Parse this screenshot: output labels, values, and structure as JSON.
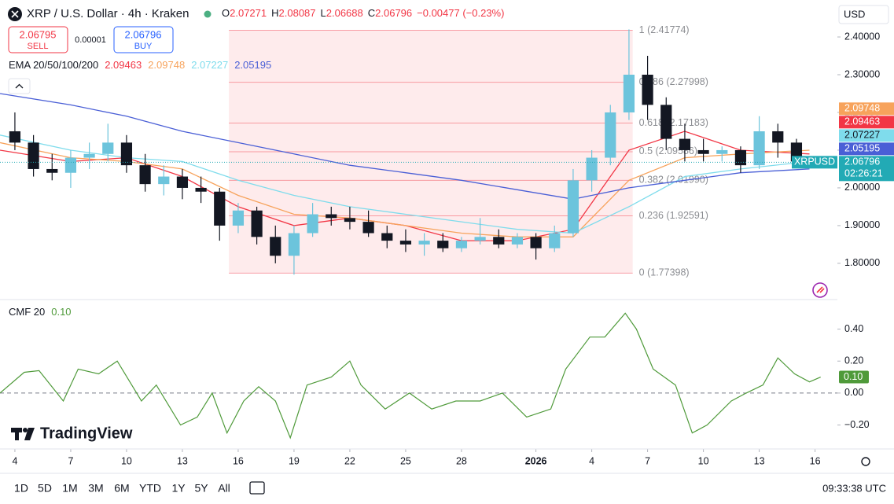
{
  "header": {
    "symbol": "XRP / U.S. Dollar · 4h · Kraken",
    "ohlc": [
      {
        "key": "O",
        "value": "2.07271"
      },
      {
        "key": "H",
        "value": "2.08087"
      },
      {
        "key": "L",
        "value": "2.06688"
      },
      {
        "key": "C",
        "value": "2.06796"
      }
    ],
    "change": "−0.00477 (−0.23%)",
    "sell": {
      "price": "2.06795",
      "label": "SELL"
    },
    "spread": "0.00001",
    "buy": {
      "price": "2.06796",
      "label": "BUY"
    },
    "currency": "USD"
  },
  "chart_data": [
    {
      "type": "candlestick",
      "indicator": "EMA 20/50/100/200",
      "x": [
        0,
        1,
        2,
        3,
        4,
        5,
        6,
        7,
        8,
        9,
        10,
        11,
        12,
        13,
        14,
        15,
        16,
        17,
        18,
        19,
        20,
        21,
        22,
        23,
        24,
        25,
        26,
        27,
        28,
        29,
        30,
        31,
        32,
        33,
        34,
        35,
        36,
        37,
        38,
        39,
        40,
        41,
        42
      ],
      "open": [
        2.15,
        2.12,
        2.05,
        2.04,
        2.08,
        2.09,
        2.12,
        2.06,
        2.01,
        2.03,
        2.0,
        1.99,
        1.9,
        1.94,
        1.87,
        1.82,
        1.88,
        1.93,
        1.92,
        1.91,
        1.88,
        1.86,
        1.85,
        1.86,
        1.84,
        1.86,
        1.87,
        1.85,
        1.87,
        1.84,
        1.88,
        2.02,
        2.08,
        2.2,
        2.3,
        2.22,
        2.13,
        2.1,
        2.09,
        2.1,
        2.06,
        2.15,
        2.12
      ],
      "high": [
        2.2,
        2.14,
        2.09,
        2.1,
        2.12,
        2.17,
        2.14,
        2.09,
        2.06,
        2.05,
        2.03,
        2.0,
        1.96,
        1.95,
        1.9,
        1.9,
        1.96,
        1.95,
        1.95,
        1.94,
        1.9,
        1.89,
        1.88,
        1.88,
        1.87,
        1.92,
        1.89,
        1.88,
        1.88,
        1.9,
        2.05,
        2.1,
        2.22,
        2.42,
        2.35,
        2.24,
        2.17,
        2.13,
        2.11,
        2.11,
        2.19,
        2.17,
        2.13
      ],
      "low": [
        2.1,
        2.03,
        2.02,
        2.0,
        2.05,
        2.07,
        2.04,
        1.99,
        1.98,
        1.97,
        1.96,
        1.86,
        1.88,
        1.85,
        1.8,
        1.77,
        1.87,
        1.9,
        1.89,
        1.87,
        1.84,
        1.83,
        1.82,
        1.83,
        1.83,
        1.85,
        1.84,
        1.84,
        1.81,
        1.83,
        1.87,
        1.99,
        2.06,
        2.18,
        2.18,
        2.1,
        2.07,
        2.07,
        2.07,
        2.04,
        2.05,
        2.08,
        2.06
      ],
      "close": [
        2.12,
        2.05,
        2.04,
        2.08,
        2.09,
        2.12,
        2.06,
        2.01,
        2.03,
        2.0,
        1.99,
        1.9,
        1.94,
        1.87,
        1.82,
        1.88,
        1.93,
        1.92,
        1.91,
        1.88,
        1.86,
        1.85,
        1.86,
        1.84,
        1.86,
        1.87,
        1.85,
        1.87,
        1.84,
        1.88,
        2.02,
        2.08,
        2.2,
        2.3,
        2.22,
        2.13,
        2.1,
        2.09,
        2.1,
        2.06,
        2.15,
        2.12,
        2.07
      ],
      "up_color": "#6cc4dc",
      "down_color": "#131722",
      "xlim": [
        -0.8,
        44.2
      ],
      "xticks": [
        {
          "value": 0,
          "label": "4"
        },
        {
          "value": 3,
          "label": "7"
        },
        {
          "value": 6,
          "label": "10"
        },
        {
          "value": 9,
          "label": "13"
        },
        {
          "value": 12,
          "label": "16"
        },
        {
          "value": 15,
          "label": "19"
        },
        {
          "value": 18,
          "label": "22"
        },
        {
          "value": 21,
          "label": "25"
        },
        {
          "value": 24,
          "label": "28"
        },
        {
          "value": 28,
          "label": "2026"
        },
        {
          "value": 31,
          "label": "4"
        },
        {
          "value": 34,
          "label": "7"
        },
        {
          "value": 37,
          "label": "10"
        },
        {
          "value": 40,
          "label": "13"
        },
        {
          "value": 43,
          "label": "16"
        }
      ],
      "ylim": [
        1.706,
        2.498
      ],
      "yticks": [
        {
          "value": 1.8,
          "label": "1.80000"
        },
        {
          "value": 1.9,
          "label": "1.90000"
        },
        {
          "value": 2.0,
          "label": "2.00000"
        },
        {
          "value": 2.1,
          "label": "2.10000"
        },
        {
          "value": 2.2,
          "label": "2.20000"
        },
        {
          "value": 2.3,
          "label": "2.30000"
        },
        {
          "value": 2.4,
          "label": "2.40000"
        }
      ],
      "series": [
        {
          "color": "#f23645",
          "x": [
            -0.8,
            3,
            6,
            9,
            12,
            15,
            18,
            21,
            24,
            27,
            30,
            33,
            36,
            39,
            42.7
          ],
          "values": [
            2.1,
            2.07,
            2.08,
            2.03,
            1.95,
            1.9,
            1.92,
            1.9,
            1.86,
            1.86,
            1.89,
            2.1,
            2.15,
            2.1,
            2.09
          ],
          "last_value": 2.09463
        },
        {
          "color": "#f7a35c",
          "x": [
            -0.8,
            3,
            6,
            9,
            12,
            15,
            18,
            21,
            24,
            27,
            30,
            33,
            36,
            39,
            42.7
          ],
          "values": [
            2.12,
            2.08,
            2.07,
            2.05,
            1.98,
            1.93,
            1.92,
            1.9,
            1.88,
            1.87,
            1.87,
            2.02,
            2.08,
            2.09,
            2.1
          ],
          "last_value": 2.09748
        },
        {
          "color": "#7fdcec",
          "x": [
            -0.8,
            3,
            6,
            9,
            12,
            15,
            18,
            21,
            24,
            27,
            30,
            33,
            36,
            39,
            42.7
          ],
          "values": [
            2.14,
            2.1,
            2.08,
            2.07,
            2.02,
            1.98,
            1.95,
            1.93,
            1.91,
            1.89,
            1.88,
            1.95,
            2.03,
            2.05,
            2.07
          ],
          "last_value": 2.07227
        },
        {
          "color": "#4a5fd6",
          "x": [
            -0.8,
            3,
            6,
            9,
            12,
            15,
            18,
            21,
            24,
            27,
            30,
            33,
            36,
            39,
            42.7
          ],
          "values": [
            2.25,
            2.22,
            2.19,
            2.15,
            2.12,
            2.09,
            2.06,
            2.04,
            2.02,
            1.995,
            1.97,
            2.0,
            2.02,
            2.04,
            2.05
          ],
          "last_value": 2.05195
        }
      ],
      "fib_x": [
        11.5,
        33.2
      ],
      "fib_color": "#f23645",
      "fib_levels": [
        {
          "price": 2.41774,
          "label": "1 (2.41774)"
        },
        {
          "price": 2.27998,
          "label": "0.786 (2.27998)"
        },
        {
          "price": 2.17183,
          "label": "0.618 (2.17183)"
        },
        {
          "price": 2.09586,
          "label": "0.5 (2.09586)"
        },
        {
          "price": 2.0199,
          "label": "0.382 (2.01990)"
        },
        {
          "price": 1.92591,
          "label": "0.236 (1.92591)"
        },
        {
          "price": 1.77398,
          "label": "0 (1.77398)"
        }
      ],
      "last": {
        "symbol": "XRPUSD",
        "price": 2.06796,
        "countdown": "02:26:21",
        "color": "#22aab5"
      }
    },
    {
      "type": "line",
      "title": "CMF 20",
      "last_value": 0.1,
      "last_value_label": "0.10",
      "color": "#4f9a3a",
      "x": [
        -0.8,
        0.5,
        1.3,
        2.6,
        3.4,
        4.5,
        5.5,
        6.8,
        7.6,
        8.9,
        9.8,
        10.6,
        11.4,
        12.3,
        13.1,
        14,
        14.8,
        15.7,
        17,
        18,
        18.6,
        19.9,
        21.2,
        22.4,
        23.7,
        25,
        26.2,
        27.5,
        28.8,
        29.6,
        30.9,
        31.7,
        32.8,
        33.4,
        34.3,
        35.5,
        36.4,
        37.2,
        38.5,
        39.3,
        40.2,
        41,
        41.9,
        42.7,
        43.3
      ],
      "values": [
        0.0,
        0.13,
        0.14,
        -0.05,
        0.15,
        0.12,
        0.2,
        -0.05,
        0.05,
        -0.2,
        -0.15,
        0.0,
        -0.25,
        -0.05,
        0.04,
        -0.05,
        -0.28,
        0.05,
        0.1,
        0.2,
        0.05,
        -0.1,
        0.0,
        -0.1,
        -0.05,
        -0.05,
        0.0,
        -0.15,
        -0.1,
        0.15,
        0.35,
        0.35,
        0.5,
        0.4,
        0.15,
        0.05,
        -0.25,
        -0.2,
        -0.05,
        0.0,
        0.05,
        0.22,
        0.12,
        0.07,
        0.1
      ],
      "ylim": [
        -0.345,
        0.58
      ],
      "yticks": [
        {
          "value": 0.4,
          "label": "0.40"
        },
        {
          "value": 0.2,
          "label": "0.20"
        },
        {
          "value": 0,
          "label": "0.00"
        },
        {
          "value": -0.2,
          "label": "−0.20"
        }
      ],
      "baseline": 0
    }
  ],
  "logo": "TradingView",
  "toolbar": {
    "ranges": [
      "1D",
      "5D",
      "1M",
      "3M",
      "6M",
      "YTD",
      "1Y",
      "5Y",
      "All"
    ],
    "clock": "09:33:38 UTC"
  }
}
